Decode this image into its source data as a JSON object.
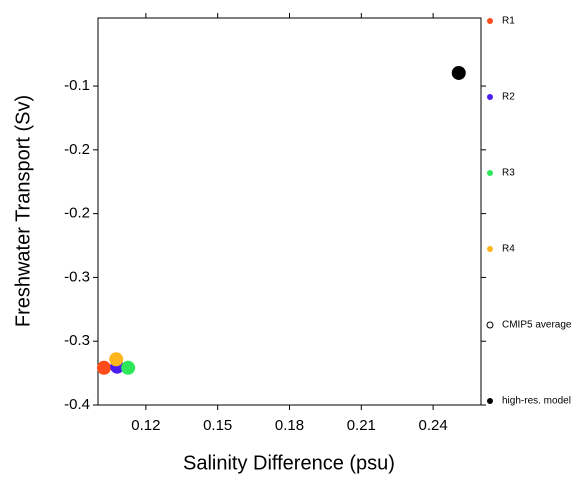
{
  "chart_data": {
    "type": "scatter",
    "xlabel": "Salinity Difference (psu)",
    "ylabel": "Freshwater Transport (Sv)",
    "xlim": [
      0.1,
      0.26
    ],
    "ylim": [
      -0.4,
      -0.036
    ],
    "xticks": [
      0.12,
      0.15,
      0.18,
      0.21,
      0.24
    ],
    "yticks": [
      {
        "value": -0.4,
        "label": "-0.4"
      },
      {
        "value": -0.34,
        "label": "-0.3"
      },
      {
        "value": -0.28,
        "label": "-0.3"
      },
      {
        "value": -0.22,
        "label": "-0.2"
      },
      {
        "value": -0.16,
        "label": "-0.2"
      },
      {
        "value": -0.1,
        "label": "-0.1"
      }
    ],
    "legend": "right",
    "series": [
      {
        "name": "R1",
        "color": "#ff4a1c",
        "marker": "filled",
        "x": [
          0.1025
        ],
        "y": [
          -0.365
        ]
      },
      {
        "name": "R2",
        "color": "#4b1cf0",
        "marker": "filled",
        "x": [
          0.108
        ],
        "y": [
          -0.364
        ]
      },
      {
        "name": "R3",
        "color": "#2ee85a",
        "marker": "filled",
        "x": [
          0.1126
        ],
        "y": [
          -0.365
        ]
      },
      {
        "name": "R4",
        "color": "#ffb61c",
        "marker": "filled",
        "x": [
          0.1076
        ],
        "y": [
          -0.357
        ]
      },
      {
        "name": "CMIP5 average",
        "color": "#000000",
        "marker": "hollow",
        "x": [
          null
        ],
        "y": [
          null
        ]
      },
      {
        "name": "high-res. model",
        "color": "#000000",
        "marker": "filled",
        "x": [
          0.2507
        ],
        "y": [
          -0.0877
        ]
      }
    ]
  }
}
